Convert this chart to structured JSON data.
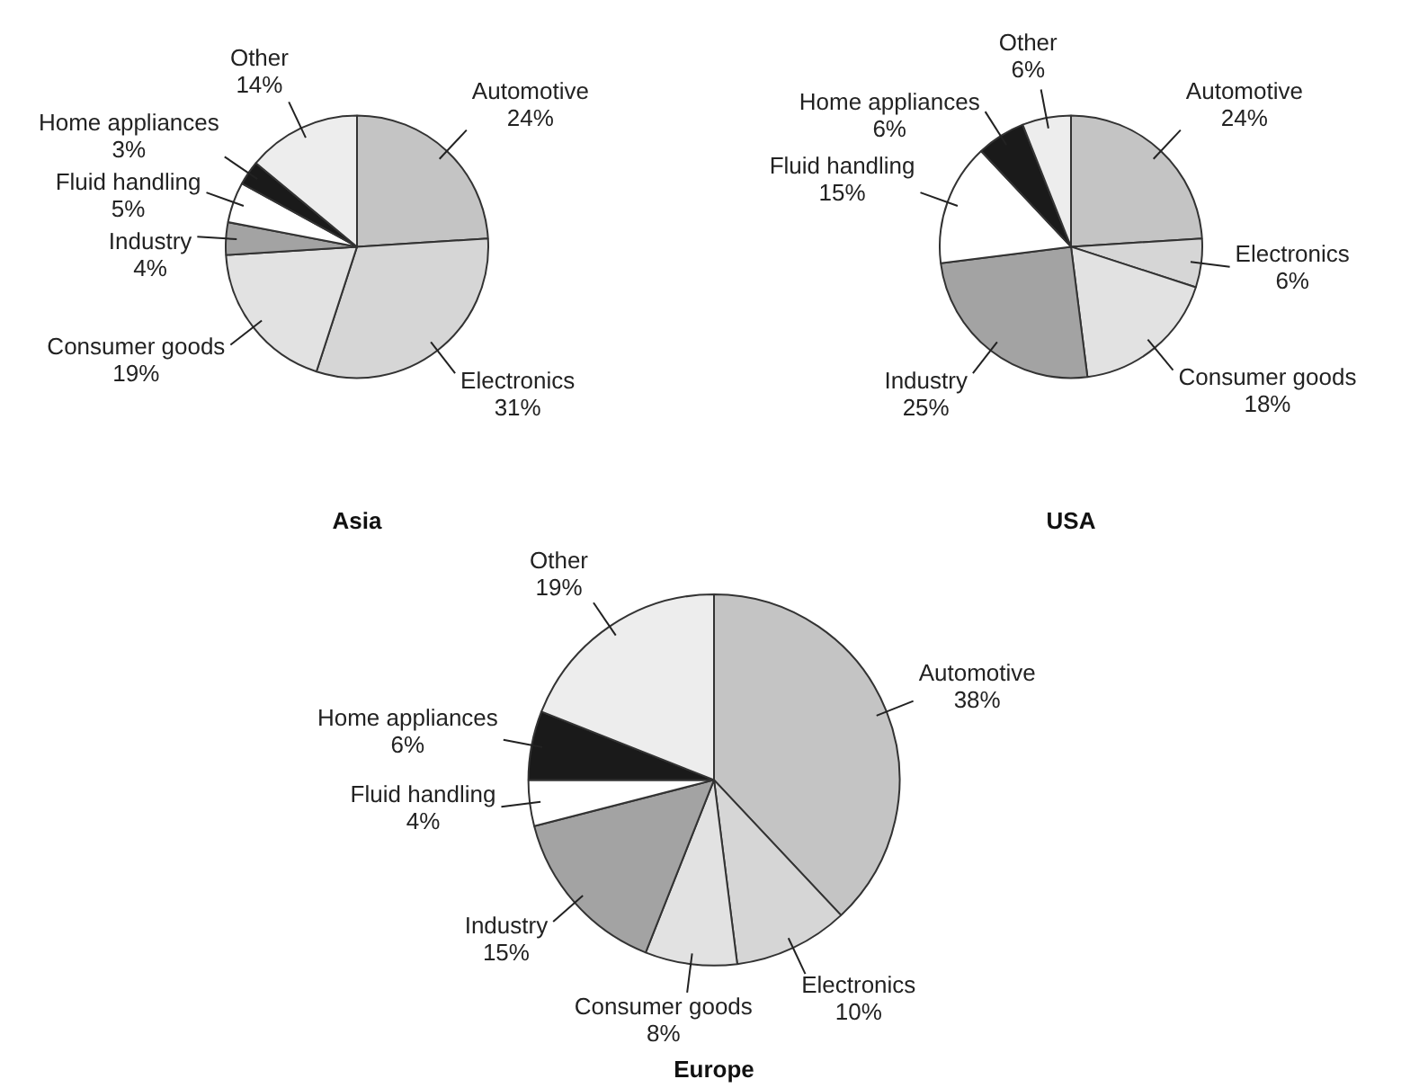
{
  "chart_data": [
    {
      "type": "pie",
      "title": "Asia",
      "legend": false,
      "categories": [
        "Automotive",
        "Electronics",
        "Consumer goods",
        "Industry",
        "Fluid handling",
        "Home appliances",
        "Other"
      ],
      "values": [
        24,
        31,
        19,
        4,
        5,
        3,
        14
      ],
      "value_labels": [
        "24%",
        "31%",
        "19%",
        "4%",
        "5%",
        "3%",
        "14%"
      ],
      "colors": [
        "#c4c4c4",
        "#d6d6d6",
        "#e2e2e2",
        "#a3a3a3",
        "#ffffff",
        "#1a1a1a",
        "#ededed"
      ]
    },
    {
      "type": "pie",
      "title": "USA",
      "legend": false,
      "categories": [
        "Automotive",
        "Electronics",
        "Consumer goods",
        "Industry",
        "Fluid handling",
        "Home appliances",
        "Other"
      ],
      "values": [
        24,
        6,
        18,
        25,
        15,
        6,
        6
      ],
      "value_labels": [
        "24%",
        "6%",
        "18%",
        "25%",
        "15%",
        "6%",
        "6%"
      ],
      "colors": [
        "#c4c4c4",
        "#d6d6d6",
        "#e2e2e2",
        "#a3a3a3",
        "#ffffff",
        "#1a1a1a",
        "#ededed"
      ]
    },
    {
      "type": "pie",
      "title": "Europe",
      "legend": false,
      "categories": [
        "Automotive",
        "Electronics",
        "Consumer goods",
        "Industry",
        "Fluid handling",
        "Home appliances",
        "Other"
      ],
      "values": [
        38,
        10,
        8,
        15,
        4,
        6,
        19
      ],
      "value_labels": [
        "38%",
        "10%",
        "8%",
        "15%",
        "4%",
        "6%",
        "19%"
      ],
      "colors": [
        "#c4c4c4",
        "#d6d6d6",
        "#e2e2e2",
        "#a3a3a3",
        "#ffffff",
        "#1a1a1a",
        "#ededed"
      ]
    }
  ]
}
